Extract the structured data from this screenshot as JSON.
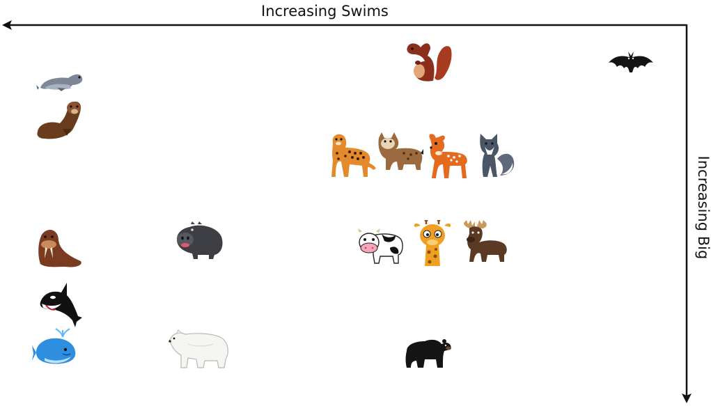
{
  "axes": {
    "x_label": "Increasing Swims",
    "y_label": "Increasing Big",
    "line_color": "#111111"
  },
  "animals": [
    {
      "name": "seal-icon",
      "label": "seal"
    },
    {
      "name": "otter-icon",
      "label": "otter"
    },
    {
      "name": "walrus-icon",
      "label": "walrus"
    },
    {
      "name": "orca-icon",
      "label": "orca"
    },
    {
      "name": "whale-icon",
      "label": "whale"
    },
    {
      "name": "hippo-icon",
      "label": "hippo"
    },
    {
      "name": "polar-bear-icon",
      "label": "polar bear"
    },
    {
      "name": "squirrel-icon",
      "label": "squirrel"
    },
    {
      "name": "bat-icon",
      "label": "bat"
    },
    {
      "name": "leopard-icon",
      "label": "leopard"
    },
    {
      "name": "lynx-icon",
      "label": "lynx"
    },
    {
      "name": "deer-icon",
      "label": "deer"
    },
    {
      "name": "wolf-icon",
      "label": "wolf"
    },
    {
      "name": "cow-icon",
      "label": "cow"
    },
    {
      "name": "giraffe-icon",
      "label": "giraffe"
    },
    {
      "name": "moose-icon",
      "label": "moose"
    },
    {
      "name": "black-bear-icon",
      "label": "black bear"
    }
  ]
}
